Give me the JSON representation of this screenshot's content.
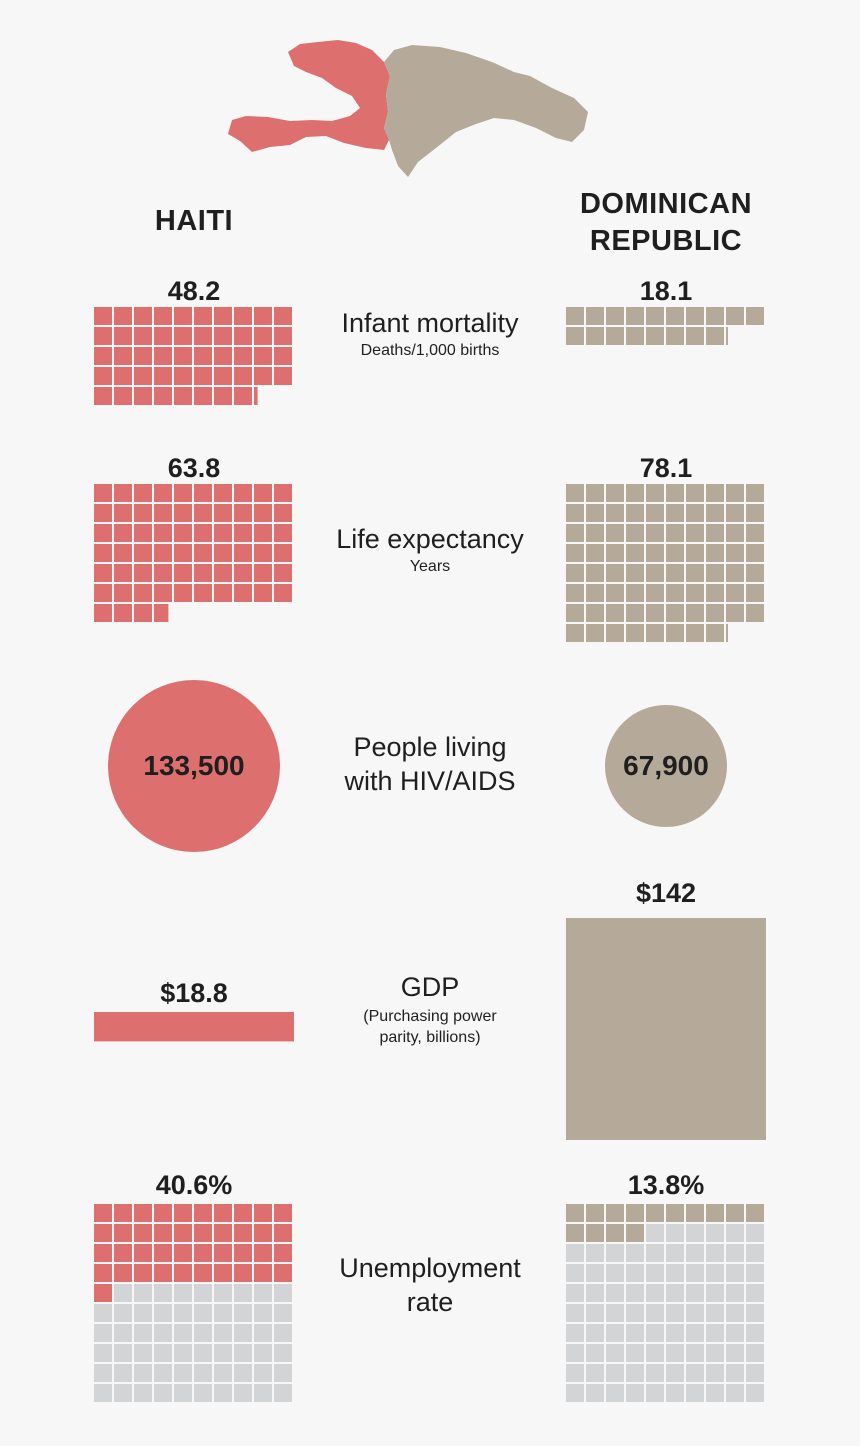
{
  "colors": {
    "haiti": "#dd706f",
    "dominican_republic": "#b5aa99",
    "empty_cell": "#d3d4d6",
    "background": "#f7f7f7"
  },
  "map": {
    "icon": "hispaniola-map-icon"
  },
  "countries": {
    "haiti": "HAITI",
    "dominican_republic": "DOMINICAN REPUBLIC"
  },
  "chart_data": [
    {
      "type": "waffle",
      "metric": "Infant mortality",
      "subtitle": "Deaths/1,000 births",
      "cells_per_row": 10,
      "values": {
        "haiti": 48.2,
        "dominican_republic": 18.1
      },
      "labels": {
        "haiti": "48.2",
        "dominican_republic": "18.1"
      }
    },
    {
      "type": "waffle",
      "metric": "Life expectancy",
      "subtitle": "Years",
      "cells_per_row": 10,
      "values": {
        "haiti": 63.8,
        "dominican_republic": 78.1
      },
      "labels": {
        "haiti": "63.8",
        "dominican_republic": "78.1"
      }
    },
    {
      "type": "bubble",
      "metric": "People living with HIV/AIDS",
      "subtitle": "",
      "values": {
        "haiti": 133500,
        "dominican_republic": 67900
      },
      "labels": {
        "haiti": "133,500",
        "dominican_republic": "67,900"
      }
    },
    {
      "type": "area",
      "metric": "GDP",
      "subtitle": "(Purchasing power parity, billions)",
      "values": {
        "haiti": 18.8,
        "dominican_republic": 142
      },
      "labels": {
        "haiti": "$18.8",
        "dominican_republic": "$142"
      }
    },
    {
      "type": "waffle",
      "metric": "Unemployment rate",
      "subtitle": "",
      "total_cells": 100,
      "cells_per_row": 10,
      "values": {
        "haiti": 40.6,
        "dominican_republic": 13.8
      },
      "labels": {
        "haiti": "40.6%",
        "dominican_republic": "13.8%"
      }
    }
  ]
}
